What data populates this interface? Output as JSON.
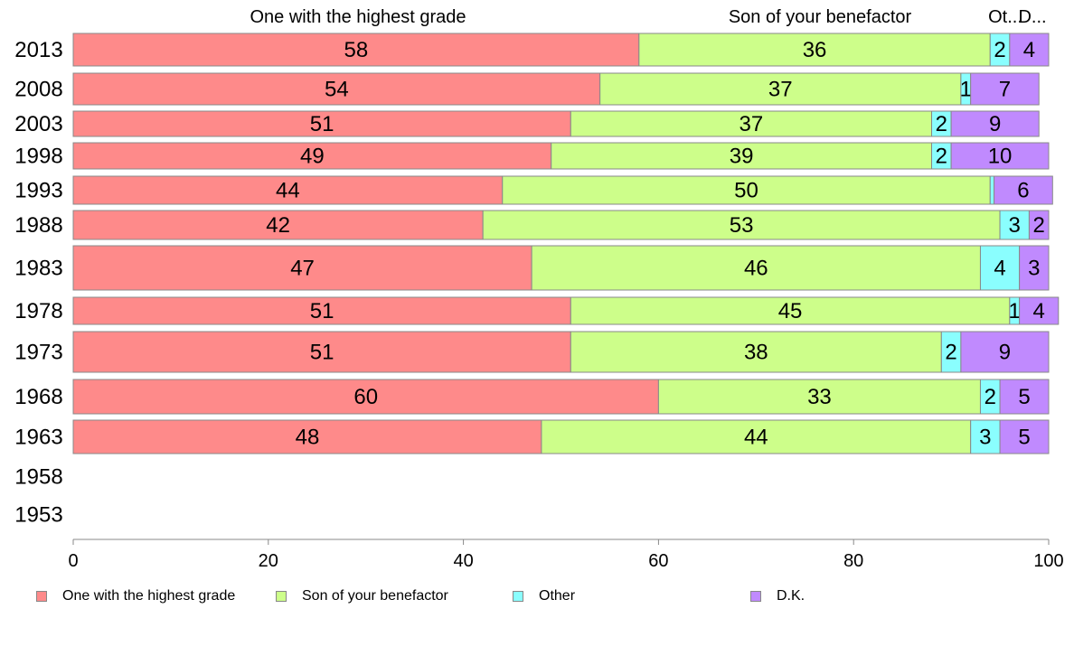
{
  "chart_data": {
    "type": "bar",
    "orientation": "horizontal",
    "stacked": true,
    "categories": [
      "2013",
      "2008",
      "2003",
      "1998",
      "1993",
      "1988",
      "1983",
      "1978",
      "1973",
      "1968",
      "1963",
      "1958",
      "1953"
    ],
    "series": [
      {
        "name": "One with the highest grade",
        "header": "One with the highest grade",
        "color": "#fe8a8a",
        "values": [
          58,
          54,
          51,
          49,
          44,
          42,
          47,
          51,
          51,
          60,
          48,
          null,
          null
        ]
      },
      {
        "name": "Son of your benefactor",
        "header": "Son of your benefactor",
        "color": "#cdfe8a",
        "values": [
          36,
          37,
          37,
          39,
          50,
          53,
          46,
          45,
          38,
          33,
          44,
          null,
          null
        ]
      },
      {
        "name": "Other",
        "header": "Ot...",
        "color": "#8afefe",
        "values": [
          2,
          1,
          2,
          2,
          0.4,
          3,
          4,
          1,
          2,
          2,
          3,
          null,
          null
        ]
      },
      {
        "name": "D.K.",
        "header": "D...",
        "color": "#c08afe",
        "values": [
          4,
          7,
          9,
          10,
          6,
          2,
          3,
          4,
          9,
          5,
          5,
          null,
          null
        ]
      }
    ],
    "labels": [
      [
        "58",
        "36",
        "2",
        "4"
      ],
      [
        "54",
        "37",
        "1",
        "7"
      ],
      [
        "51",
        "37",
        "2",
        "9"
      ],
      [
        "49",
        "39",
        "2",
        "10"
      ],
      [
        "44",
        "50",
        "",
        "6"
      ],
      [
        "42",
        "53",
        "3",
        "2"
      ],
      [
        "47",
        "46",
        "4",
        "3"
      ],
      [
        "51",
        "45",
        "1",
        "4"
      ],
      [
        "51",
        "38",
        "2",
        "9"
      ],
      [
        "60",
        "33",
        "2",
        "5"
      ],
      [
        "48",
        "44",
        "3",
        "5"
      ],
      [
        "",
        "",
        "",
        ""
      ],
      [
        "",
        "",
        "",
        ""
      ]
    ],
    "xlim": [
      0,
      100
    ],
    "xticks": [
      "0",
      "20",
      "40",
      "60",
      "80",
      "100"
    ],
    "xlabel": "",
    "ylabel": "",
    "title": "",
    "grid": false,
    "legend_position": "bottom"
  }
}
